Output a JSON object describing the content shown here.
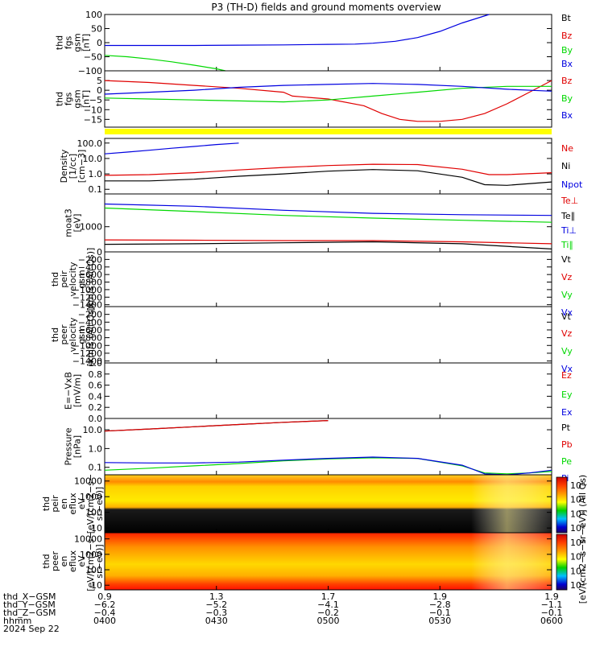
{
  "title": "P3 (TH-D) fields and ground moments overview",
  "colors": {
    "black": "#000000",
    "red": "#e00000",
    "green": "#00d800",
    "blue": "#0000e0",
    "yellow": "#ffff00",
    "axis": "#000000"
  },
  "chart_data": [
    {
      "type": "line",
      "id": "fgs",
      "ylabel": [
        "thd",
        "fgs",
        "gsm",
        "[nT]"
      ],
      "yticks": [
        "100",
        "50",
        "0",
        "−50",
        "−100"
      ],
      "ylim": [
        -100,
        100
      ],
      "series": [
        {
          "name": "Bt",
          "color": "black",
          "x": [],
          "y": []
        },
        {
          "name": "Bz",
          "color": "red",
          "x": [],
          "y": []
        },
        {
          "name": "By",
          "color": "green",
          "x": [
            0,
            0.5,
            1,
            1.5,
            2,
            2.5,
            2.7
          ],
          "y": [
            -45,
            -50,
            -58,
            -68,
            -80,
            -93,
            -100
          ]
        },
        {
          "name": "Bx",
          "color": "blue",
          "x": [
            0,
            1,
            2,
            3,
            4,
            5,
            5.6,
            6,
            6.5,
            7,
            7.5,
            8,
            8.6
          ],
          "y": [
            -10,
            -10,
            -10,
            -9,
            -8,
            -6,
            -5,
            -2,
            5,
            18,
            40,
            70,
            100
          ]
        }
      ]
    },
    {
      "type": "line",
      "id": "fgs-zoom",
      "ylabel": [
        "thd",
        "fgs",
        "gsm",
        "[nT]"
      ],
      "yticks": [
        "5",
        "0",
        "−5",
        "−10",
        "−15"
      ],
      "ylim": [
        -19,
        10
      ],
      "series": [
        {
          "name": "Bz",
          "color": "red",
          "x": [
            0,
            1,
            2,
            3,
            4,
            4.2,
            5,
            5.8,
            6.2,
            6.6,
            7,
            7.5,
            8,
            8.5,
            9,
            9.5,
            10
          ],
          "y": [
            5,
            4,
            2.5,
            1,
            -1,
            -3,
            -4.5,
            -8,
            -12,
            -15,
            -16,
            -16,
            -15,
            -12,
            -7,
            -1,
            5
          ]
        },
        {
          "name": "By",
          "color": "green",
          "x": [
            0,
            1,
            2,
            3,
            4,
            5,
            6,
            7,
            8,
            9,
            10
          ],
          "y": [
            -4,
            -4.5,
            -5,
            -5.5,
            -6,
            -5,
            -3,
            -1,
            1,
            2,
            2
          ]
        },
        {
          "name": "Bx",
          "color": "blue",
          "x": [
            0,
            1,
            2,
            3,
            4,
            5,
            6,
            7,
            8,
            9,
            10
          ],
          "y": [
            -2,
            -1,
            0,
            1.5,
            2.5,
            3,
            3.5,
            3,
            2,
            0.5,
            -0.5
          ]
        }
      ]
    },
    {
      "type": "line",
      "id": "density",
      "log": true,
      "ylabel": [
        "Density",
        "[1/cc]",
        "[cm−3]"
      ],
      "yticks": [
        "100.0",
        "10.0",
        "1.0",
        "0.1"
      ],
      "ylim": [
        0.05,
        200
      ],
      "series": [
        {
          "name": "Ne",
          "color": "red",
          "x": [
            0,
            1,
            2,
            3,
            4,
            5,
            6,
            7,
            8,
            8.6,
            9,
            10
          ],
          "y": [
            0.8,
            0.9,
            1.2,
            1.8,
            2.6,
            3.5,
            4.2,
            4.0,
            2.0,
            0.9,
            0.9,
            1.2
          ]
        },
        {
          "name": "Ni",
          "color": "black",
          "x": [
            0,
            1,
            2,
            3,
            4,
            5,
            6,
            7,
            8,
            8.5,
            9,
            10
          ],
          "y": [
            0.35,
            0.35,
            0.45,
            0.7,
            1.0,
            1.5,
            1.9,
            1.6,
            0.6,
            0.2,
            0.18,
            0.3
          ]
        },
        {
          "name": "Npot",
          "color": "blue",
          "x": [
            0,
            0.5,
            1,
            1.5,
            2,
            2.5,
            3
          ],
          "y": [
            20,
            26,
            34,
            46,
            60,
            80,
            100
          ]
        }
      ]
    },
    {
      "type": "line",
      "id": "temp",
      "log": true,
      "ylabel": [
        "moat3",
        "[eV]"
      ],
      "yticks": [
        "1000"
      ],
      "ylim": [
        100,
        20000
      ],
      "series": [
        {
          "name": "Te⊥",
          "color": "red",
          "x": [
            0,
            2,
            4,
            6,
            8,
            10
          ],
          "y": [
            300,
            290,
            280,
            280,
            250,
            210
          ]
        },
        {
          "name": "Te∥",
          "color": "black",
          "x": [
            0,
            2,
            4,
            6,
            8,
            10
          ],
          "y": [
            200,
            210,
            230,
            250,
            210,
            130
          ]
        },
        {
          "name": "Ti⊥",
          "color": "blue",
          "x": [
            0,
            2,
            4,
            6,
            8,
            10
          ],
          "y": [
            8000,
            6500,
            4500,
            3400,
            3000,
            2800
          ]
        },
        {
          "name": "Ti∥",
          "color": "green",
          "x": [
            0,
            2,
            4,
            6,
            8,
            10
          ],
          "y": [
            5500,
            4000,
            2800,
            2200,
            1800,
            1500
          ]
        }
      ]
    },
    {
      "type": "line",
      "id": "peir-vel",
      "ylabel": [
        "thd",
        "peir",
        "velocity",
        "gsm",
        "[km/s (All Qs)]"
      ],
      "yticks": [
        "0",
        "−200",
        "−400",
        "−600",
        "−800",
        "−1000",
        "−1200",
        "−1400"
      ],
      "ylim": [
        -1450,
        0
      ],
      "series": [
        {
          "name": "Vt",
          "color": "black",
          "x": [],
          "y": []
        },
        {
          "name": "Vz",
          "color": "red",
          "x": [],
          "y": []
        },
        {
          "name": "Vy",
          "color": "green",
          "x": [],
          "y": []
        },
        {
          "name": "Vx",
          "color": "blue",
          "x": [],
          "y": []
        }
      ]
    },
    {
      "type": "line",
      "id": "peer-vel",
      "ylabel": [
        "thd",
        "peer",
        "velocity",
        "gsm",
        "[km/s (All Qs)]"
      ],
      "yticks": [
        "−200",
        "−400",
        "−600",
        "−800",
        "−1000",
        "−1200",
        "−1400"
      ],
      "ylim": [
        -1450,
        0
      ],
      "series": [
        {
          "name": "Vt",
          "color": "black",
          "x": [],
          "y": []
        },
        {
          "name": "Vz",
          "color": "red",
          "x": [],
          "y": []
        },
        {
          "name": "Vy",
          "color": "green",
          "x": [],
          "y": []
        },
        {
          "name": "Vx",
          "color": "blue",
          "x": [],
          "y": []
        }
      ]
    },
    {
      "type": "line",
      "id": "efield",
      "ylabel": [
        "E=−VxB",
        "[mV/m]"
      ],
      "yticks": [
        "1.0",
        "0.8",
        "0.6",
        "0.4",
        "0.2",
        "0.0"
      ],
      "ylim": [
        0,
        1
      ],
      "series": [
        {
          "name": "Ez",
          "color": "red",
          "x": [],
          "y": []
        },
        {
          "name": "Ey",
          "color": "green",
          "x": [],
          "y": []
        },
        {
          "name": "Ex",
          "color": "blue",
          "x": [],
          "y": []
        }
      ]
    },
    {
      "type": "line",
      "id": "pressure",
      "log": true,
      "ylabel": [
        "Pressure",
        "[nPa]"
      ],
      "yticks": [
        "10.0",
        "1.0",
        "0.1"
      ],
      "ylim": [
        0.04,
        40
      ],
      "series": [
        {
          "name": "Pt",
          "color": "black",
          "x": [
            0,
            1,
            2,
            3,
            4,
            5
          ],
          "y": [
            8.5,
            11,
            14.5,
            19,
            25,
            31
          ]
        },
        {
          "name": "Pb",
          "color": "red",
          "x": [
            0,
            1,
            2,
            3,
            4,
            5
          ],
          "y": [
            8.5,
            11,
            14.5,
            19,
            25,
            31
          ]
        },
        {
          "name": "Pe",
          "color": "green",
          "x": [
            0,
            1,
            2,
            3,
            4,
            5,
            6,
            7,
            8,
            8.5,
            9,
            9.5,
            10
          ],
          "y": [
            0.07,
            0.09,
            0.12,
            0.16,
            0.22,
            0.28,
            0.32,
            0.3,
            0.12,
            0.05,
            0.045,
            0.05,
            0.06
          ]
        },
        {
          "name": "Pi",
          "color": "blue",
          "x": [
            0,
            1,
            2,
            3,
            4,
            5,
            6,
            7,
            8,
            8.5,
            9,
            9.5,
            10
          ],
          "y": [
            0.18,
            0.17,
            0.17,
            0.19,
            0.24,
            0.3,
            0.35,
            0.3,
            0.13,
            0.045,
            0.04,
            0.05,
            0.07
          ]
        }
      ]
    },
    {
      "type": "heatmap",
      "id": "peir-spec",
      "log": true,
      "ylabel": [
        "thd",
        "peir",
        "en",
        "eflux",
        "eV",
        "[eV/(cm2−s−",
        "sr−eV)]"
      ],
      "yticks": [
        "10000",
        "1000",
        "100",
        "10"
      ],
      "ylim": [
        5,
        25000
      ]
    },
    {
      "type": "heatmap",
      "id": "peer-spec",
      "log": true,
      "ylabel": [
        "thd",
        "peer",
        "en",
        "eflux",
        "eV",
        "[eV/(cm2−s−",
        "sr−eV)]"
      ],
      "yticks": [
        "10000",
        "1000",
        "100",
        "10"
      ],
      "ylim": [
        5,
        25000
      ]
    }
  ],
  "legends": [
    [
      "Bt",
      "Bz",
      "By",
      "Bx"
    ],
    [
      "Bz",
      "By",
      "Bx"
    ],
    [
      "Ne",
      "Ni",
      "Npot"
    ],
    [
      "Te⊥",
      "Te∥",
      "Ti⊥",
      "Ti∥"
    ],
    [
      "Vt",
      "Vz",
      "Vy",
      "Vx"
    ],
    [
      "Vt",
      "Vz",
      "Vy",
      "Vx"
    ],
    [
      "Ez",
      "Ey",
      "Ex"
    ],
    [
      "Pt",
      "Pb",
      "Pe",
      "Pi"
    ]
  ],
  "colorbar": {
    "label": "[eV/(cm2−s−sr−eV)] (All Qs)",
    "upper_ticks": [
      "10⁸",
      "10⁶",
      "10⁴",
      "10²"
    ],
    "lower_ticks": [
      "10⁸",
      "10⁶",
      "10⁴",
      "10²"
    ]
  },
  "ephemeris": {
    "labels": [
      "thd_X−GSM",
      "thd_Y−GSM",
      "thd_Z−GSM",
      "hhmm",
      "2024 Sep 22"
    ],
    "columns": [
      [
        "0.9",
        "−6.2",
        "−0.4",
        "0400"
      ],
      [
        "1.3",
        "−5.2",
        "−0.3",
        "0430"
      ],
      [
        "1.7",
        "−4.1",
        "−0.2",
        "0500"
      ],
      [
        "1.9",
        "−2.8",
        "−0.1",
        "0530"
      ],
      [
        "1.9",
        "−1.1",
        "−0.1",
        "0600"
      ]
    ]
  }
}
